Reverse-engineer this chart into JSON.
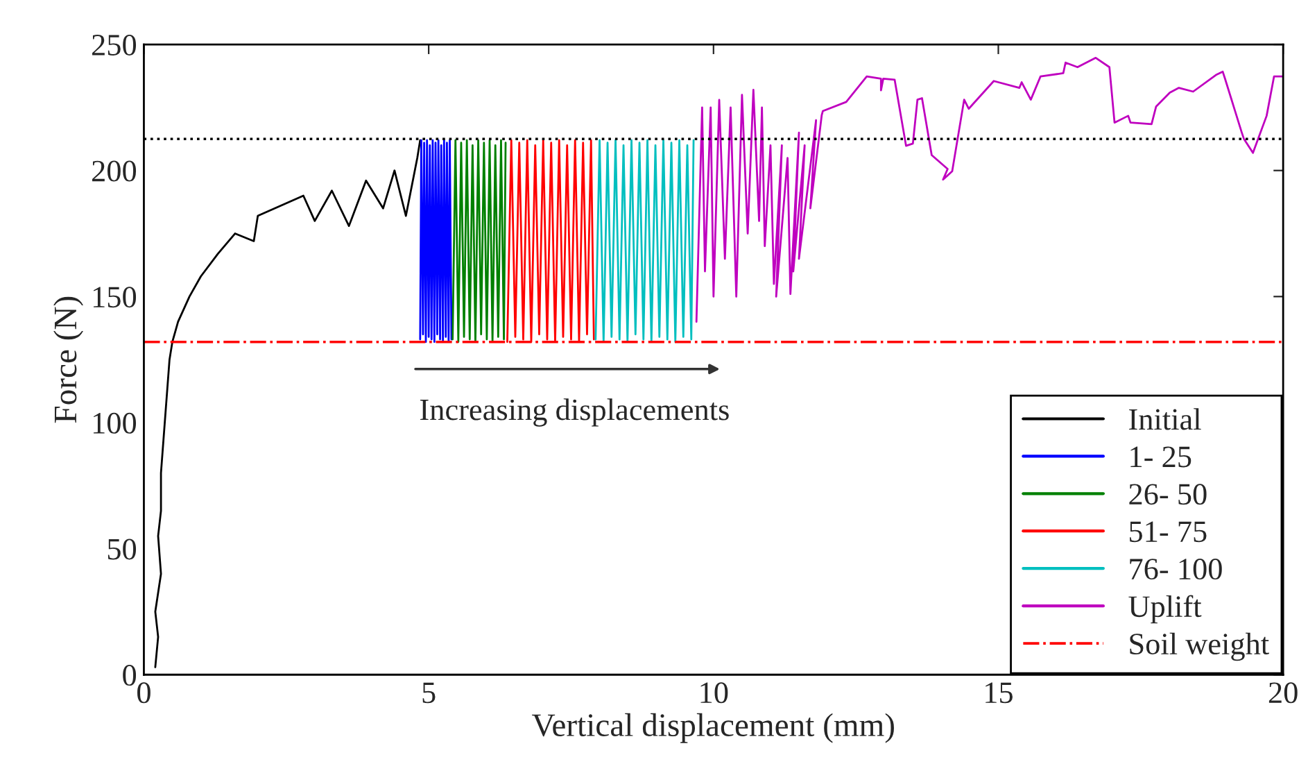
{
  "chart_data": {
    "type": "line",
    "xlabel": "Vertical displacement (mm)",
    "ylabel": "Force (N)",
    "xlim": [
      0,
      20
    ],
    "ylim": [
      0,
      250
    ],
    "xticks": [
      0,
      5,
      10,
      15,
      20
    ],
    "yticks": [
      0,
      50,
      100,
      150,
      200,
      250
    ],
    "grid": false,
    "legend": "bottom right",
    "line_style": "solid",
    "marker": "none",
    "annotations": [
      "Increasing displacements"
    ],
    "ref_lines": [
      {
        "axis": "y",
        "value": 212.5,
        "label": null,
        "color": "#000000",
        "line_style": "dotted"
      },
      {
        "axis": "y",
        "value": 132,
        "label": "Soil weight",
        "color": "#ff0000",
        "line_style": "dashdot"
      }
    ],
    "series": [
      {
        "name": "Initial",
        "color": "#000000",
        "x": [
          0.2,
          0.25,
          0.2,
          0.3,
          0.25,
          0.3,
          0.3,
          0.35,
          0.4,
          0.45,
          0.5,
          0.6,
          0.8,
          1.0,
          1.3,
          1.6,
          1.93,
          2.0,
          2.4,
          2.8,
          3.0,
          3.3,
          3.6,
          3.9,
          4.2,
          4.4,
          4.6,
          4.8,
          4.85
        ],
        "values": [
          3,
          15,
          25,
          40,
          55,
          65,
          80,
          95,
          110,
          125,
          132,
          140,
          150,
          158,
          167,
          175,
          172,
          182,
          186,
          190,
          180,
          192,
          178,
          196,
          185,
          200,
          182,
          205,
          212
        ]
      },
      {
        "name": "1- 25",
        "color": "#0000ff",
        "x": [
          4.85,
          4.87,
          4.9,
          4.92,
          4.95,
          4.97,
          5.0,
          5.02,
          5.05,
          5.07,
          5.1,
          5.12,
          5.15,
          5.17,
          5.2,
          5.22,
          5.25,
          5.27,
          5.3,
          5.32,
          5.35,
          5.37,
          5.4
        ],
        "values": [
          133,
          212,
          135,
          211,
          132,
          212,
          134,
          210,
          133,
          212,
          132,
          211,
          135,
          212,
          133,
          210,
          132,
          212,
          134,
          211,
          132,
          212,
          133
        ]
      },
      {
        "name": "26- 50",
        "color": "#008000",
        "x": [
          5.42,
          5.47,
          5.52,
          5.57,
          5.62,
          5.67,
          5.72,
          5.77,
          5.82,
          5.87,
          5.92,
          5.97,
          6.02,
          6.07,
          6.12,
          6.17,
          6.22,
          6.27,
          6.32,
          6.35
        ],
        "values": [
          133,
          212,
          132,
          211,
          134,
          212,
          133,
          210,
          132,
          212,
          135,
          211,
          133,
          212,
          132,
          210,
          134,
          212,
          133,
          211
        ]
      },
      {
        "name": "51- 75",
        "color": "#ff0000",
        "x": [
          6.38,
          6.45,
          6.52,
          6.59,
          6.66,
          6.73,
          6.8,
          6.87,
          6.94,
          7.01,
          7.08,
          7.15,
          7.22,
          7.29,
          7.36,
          7.43,
          7.5,
          7.57,
          7.64,
          7.71,
          7.78,
          7.85,
          7.9
        ],
        "values": [
          132,
          212,
          134,
          211,
          133,
          212,
          132,
          210,
          135,
          212,
          133,
          211,
          132,
          212,
          134,
          210,
          133,
          212,
          132,
          211,
          135,
          212,
          133
        ]
      },
      {
        "name": "76- 100",
        "color": "#00bfbf",
        "x": [
          7.93,
          8.0,
          8.07,
          8.14,
          8.21,
          8.28,
          8.35,
          8.42,
          8.49,
          8.56,
          8.63,
          8.7,
          8.77,
          8.84,
          8.91,
          8.98,
          9.05,
          9.12,
          9.19,
          9.26,
          9.33,
          9.4,
          9.47,
          9.54,
          9.61,
          9.65
        ],
        "values": [
          133,
          212,
          132,
          211,
          134,
          212,
          133,
          210,
          132,
          212,
          135,
          211,
          133,
          212,
          132,
          210,
          134,
          212,
          133,
          211,
          132,
          212,
          134,
          210,
          133,
          212
        ]
      },
      {
        "name": "Uplift",
        "color": "#bf00bf",
        "x": [
          9.7,
          9.8,
          9.85,
          9.95,
          10.0,
          10.1,
          10.2,
          10.3,
          10.4,
          10.5,
          10.6,
          10.7,
          10.8,
          10.85,
          10.9,
          11.0,
          11.06,
          11.2,
          11.1,
          11.3,
          11.35,
          11.5,
          11.4,
          11.6,
          11.5,
          11.8,
          11.7,
          11.9,
          11.92,
          12.33,
          12.69,
          12.94,
          12.94,
          12.98,
          13.18,
          13.38,
          13.5,
          13.58,
          13.66,
          13.83,
          14.11,
          14.03,
          14.19,
          14.4,
          14.48,
          14.92,
          15.37,
          15.41,
          15.57,
          15.74,
          16.14,
          16.18,
          16.39,
          16.71,
          16.95,
          17.04,
          17.28,
          17.32,
          17.69,
          17.77,
          18.01,
          18.17,
          18.42,
          18.82,
          18.94,
          18.98,
          19.27,
          19.31,
          19.47,
          19.71,
          19.84,
          20.0
        ],
        "values": [
          140,
          225,
          160,
          225,
          150,
          228,
          165,
          225,
          150,
          230,
          175,
          232,
          180,
          225,
          170,
          210,
          155,
          210,
          150,
          205,
          151,
          215,
          160,
          210,
          165,
          220,
          185,
          222,
          223.6,
          227.2,
          237.3,
          236.4,
          231.8,
          236.4,
          236.0,
          209.8,
          210.7,
          228.1,
          228.7,
          206.1,
          200.6,
          196.4,
          199.7,
          228.1,
          224.5,
          235.5,
          232.8,
          235.0,
          228.1,
          237.3,
          238.6,
          242.8,
          241.0,
          244.7,
          241.0,
          219.0,
          221.7,
          219.0,
          218.4,
          225.4,
          230.9,
          232.8,
          231.3,
          237.9,
          239.2,
          236.4,
          215.3,
          212.6,
          207.0,
          221.7,
          237.3,
          237.3
        ]
      }
    ]
  }
}
